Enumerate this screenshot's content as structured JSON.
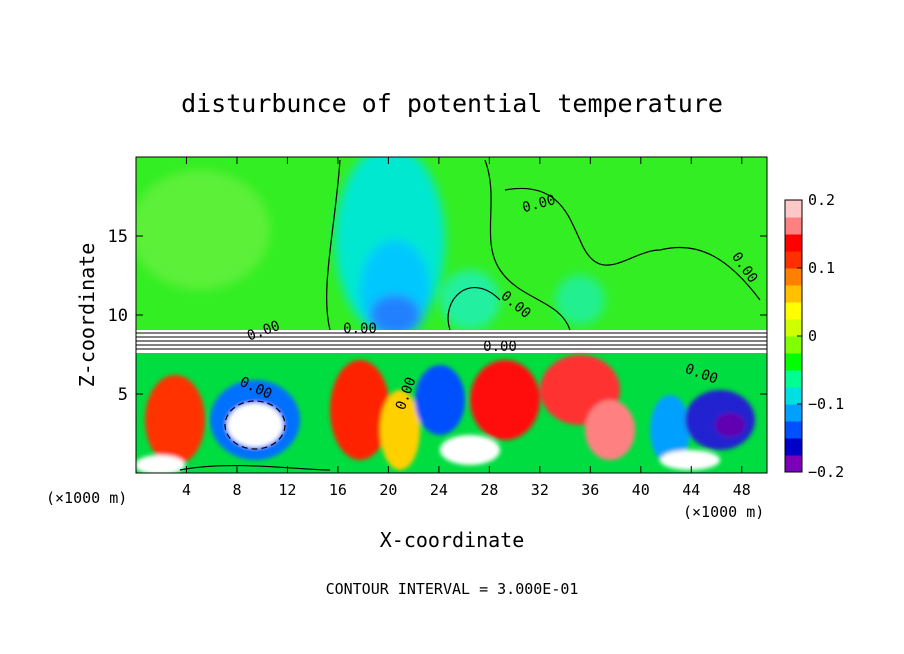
{
  "chart_data": {
    "type": "heatmap",
    "title": "disturbunce of potential temperature",
    "xlabel": "X-coordinate",
    "ylabel": "Z-coordinate",
    "x_unit_left": "(×1000 m)",
    "x_unit_right": "(×1000 m)",
    "xlim": [
      0,
      50
    ],
    "ylim": [
      0,
      20
    ],
    "x_ticks": [
      4,
      8,
      12,
      16,
      20,
      24,
      28,
      32,
      36,
      40,
      44,
      48
    ],
    "x_tick_labels": [
      "4",
      "8",
      "12",
      "16",
      "20",
      "24",
      "28",
      "32",
      "36",
      "40",
      "44",
      "48"
    ],
    "y_ticks": [
      5,
      10,
      15
    ],
    "y_tick_labels": [
      "5",
      "10",
      "15"
    ],
    "colorbar": {
      "range": [
        -0.2,
        0.2
      ],
      "ticks": [
        0.2,
        0.1,
        0,
        -0.1,
        -0.2
      ],
      "tick_labels": [
        "0.2",
        "0.1",
        "0",
        "−0.1",
        "−0.2"
      ],
      "colors": [
        "#7b00b8",
        "#0000c8",
        "#0050ff",
        "#00a0ff",
        "#00e0e0",
        "#00ff90",
        "#00ff00",
        "#80ff00",
        "#d0ff00",
        "#ffff00",
        "#ffc000",
        "#ff8000",
        "#ff3000",
        "#ff0000",
        "#ff8080",
        "#ffc8c8"
      ]
    },
    "contour_labels": [
      "0.00",
      "0.00",
      "0.00",
      "0.00",
      "0.00",
      "0.00",
      "0.00",
      "0.00",
      "0.00"
    ],
    "footer": "CONTOUR INTERVAL = 3.000E-01",
    "grid": false
  },
  "colors": {
    "background": "#ffffff",
    "upper_field": "#33ee22",
    "cool_plume": "#00e8e0",
    "core": "#0060ff",
    "warm": "#ff2000"
  }
}
